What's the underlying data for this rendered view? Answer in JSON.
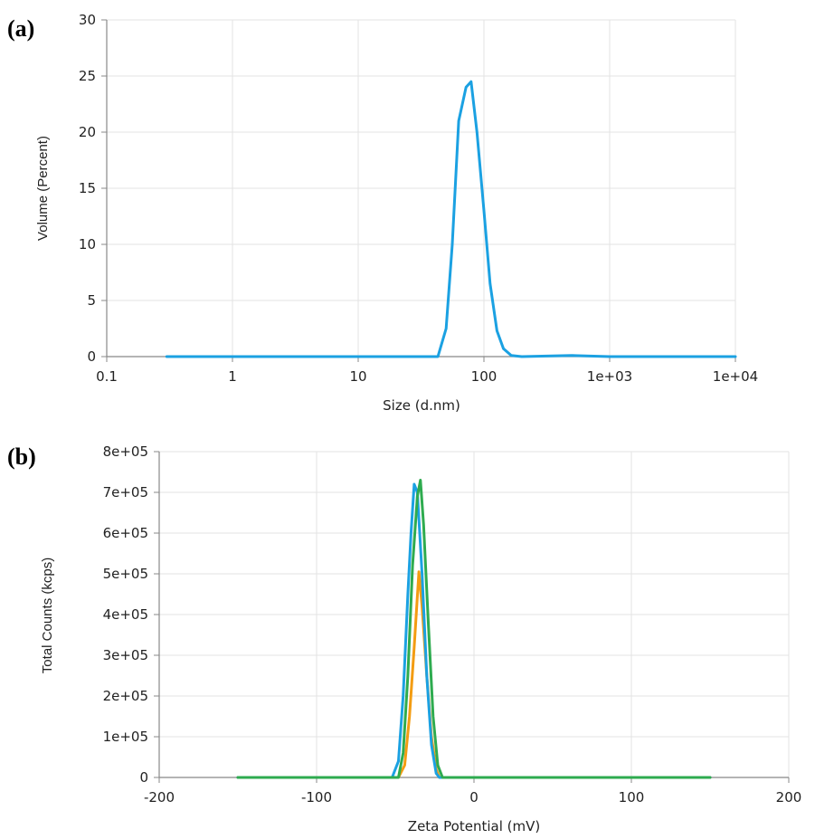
{
  "chart_data": [
    {
      "panel_label": "(a)",
      "type": "line",
      "xlabel": "Size (d.nm)",
      "ylabel": "Volume (Percent)",
      "x_scale": "log",
      "xlim": [
        0.1,
        10000
      ],
      "ylim": [
        0,
        30
      ],
      "x_ticks": [
        "0.1",
        "1",
        "10",
        "100",
        "1e+03",
        "1e+04"
      ],
      "x_tick_values": [
        0.1,
        1,
        10,
        100,
        1000,
        10000
      ],
      "y_ticks": [
        "0",
        "5",
        "10",
        "15",
        "20",
        "25",
        "30"
      ],
      "y_tick_values": [
        0,
        5,
        10,
        15,
        20,
        25,
        30
      ],
      "grid": true,
      "series": [
        {
          "color": "#1ba1e2",
          "points": [
            [
              0.3,
              0
            ],
            [
              40,
              0
            ],
            [
              43,
              0
            ],
            [
              50,
              2.5
            ],
            [
              56,
              10
            ],
            [
              63,
              21
            ],
            [
              72,
              24
            ],
            [
              79,
              24.5
            ],
            [
              88,
              20
            ],
            [
              100,
              13
            ],
            [
              112,
              6.5
            ],
            [
              127,
              2.3
            ],
            [
              143,
              0.7
            ],
            [
              165,
              0.1
            ],
            [
              200,
              0
            ],
            [
              500,
              0.1
            ],
            [
              1000,
              0
            ],
            [
              10000,
              0
            ]
          ]
        }
      ]
    },
    {
      "panel_label": "(b)",
      "type": "line",
      "xlabel": "Zeta Potential (mV)",
      "ylabel": "Total Counts (kcps)",
      "x_scale": "linear",
      "xlim": [
        -200,
        200
      ],
      "ylim": [
        0,
        800000
      ],
      "x_ticks": [
        "-200",
        "-100",
        "0",
        "100",
        "200"
      ],
      "x_tick_values": [
        -200,
        -100,
        0,
        100,
        200
      ],
      "y_ticks": [
        "0",
        "1e+05",
        "2e+05",
        "3e+05",
        "4e+05",
        "5e+05",
        "6e+05",
        "7e+05",
        "8e+05"
      ],
      "y_tick_values": [
        0,
        100000,
        200000,
        300000,
        400000,
        500000,
        600000,
        700000,
        800000
      ],
      "grid": true,
      "series": [
        {
          "color": "#f39c12",
          "points": [
            [
              -150,
              0
            ],
            [
              -48,
              0
            ],
            [
              -44,
              30000
            ],
            [
              -41,
              150000
            ],
            [
              -38,
              320000
            ],
            [
              -35,
              505000
            ],
            [
              -33,
              420000
            ],
            [
              -30,
              250000
            ],
            [
              -27,
              100000
            ],
            [
              -24,
              20000
            ],
            [
              -22,
              0
            ],
            [
              150,
              0
            ]
          ]
        },
        {
          "color": "#1ba1e2",
          "points": [
            [
              -150,
              0
            ],
            [
              -52,
              0
            ],
            [
              -48,
              40000
            ],
            [
              -45,
              200000
            ],
            [
              -42,
              450000
            ],
            [
              -40,
              600000
            ],
            [
              -38,
              720000
            ],
            [
              -36,
              700000
            ],
            [
              -33,
              500000
            ],
            [
              -30,
              250000
            ],
            [
              -27,
              80000
            ],
            [
              -24,
              10000
            ],
            [
              -22,
              0
            ],
            [
              150,
              0
            ]
          ]
        },
        {
          "color": "#2eab4f",
          "points": [
            [
              -150,
              0
            ],
            [
              -48,
              0
            ],
            [
              -45,
              60000
            ],
            [
              -42,
              250000
            ],
            [
              -39,
              520000
            ],
            [
              -36,
              690000
            ],
            [
              -34,
              730000
            ],
            [
              -32,
              620000
            ],
            [
              -29,
              380000
            ],
            [
              -26,
              150000
            ],
            [
              -23,
              30000
            ],
            [
              -20,
              0
            ],
            [
              150,
              0
            ]
          ]
        }
      ]
    }
  ]
}
